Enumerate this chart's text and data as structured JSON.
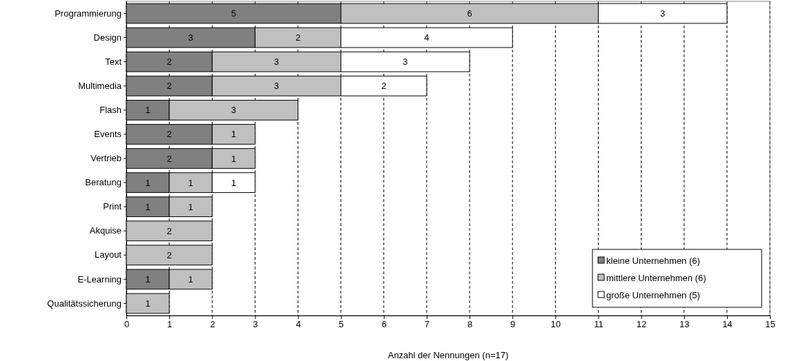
{
  "chart_data": {
    "type": "bar",
    "orientation": "horizontal",
    "stacked": true,
    "xlabel": "Anzahl der Nennungen (n=17)",
    "categories": [
      "Programmierung",
      "Design",
      "Text",
      "Multimedia",
      "Flash",
      "Events",
      "Vertrieb",
      "Beratung",
      "Print",
      "Akquise",
      "Layout",
      "E-Learning",
      "Qualitätssicherung"
    ],
    "series": [
      {
        "name": "kleine Unternehmen (6)",
        "color": "#808080",
        "values": [
          5,
          3,
          2,
          2,
          1,
          2,
          2,
          1,
          1,
          null,
          null,
          1,
          null
        ]
      },
      {
        "name": "mittlere Unternehmen (6)",
        "color": "#c0c0c0",
        "values": [
          6,
          2,
          3,
          3,
          3,
          1,
          1,
          1,
          1,
          2,
          2,
          1,
          1
        ]
      },
      {
        "name": "große Unternehmen (5)",
        "color": "#ffffff",
        "values": [
          3,
          4,
          3,
          2,
          null,
          null,
          null,
          1,
          null,
          null,
          null,
          null,
          null
        ]
      }
    ],
    "xlim": [
      0,
      15
    ],
    "xticks": [
      0,
      1,
      2,
      3,
      4,
      5,
      6,
      7,
      8,
      9,
      10,
      11,
      12,
      13,
      14,
      15
    ],
    "grid": "x",
    "legend": "bottom right",
    "data_labels": true
  }
}
